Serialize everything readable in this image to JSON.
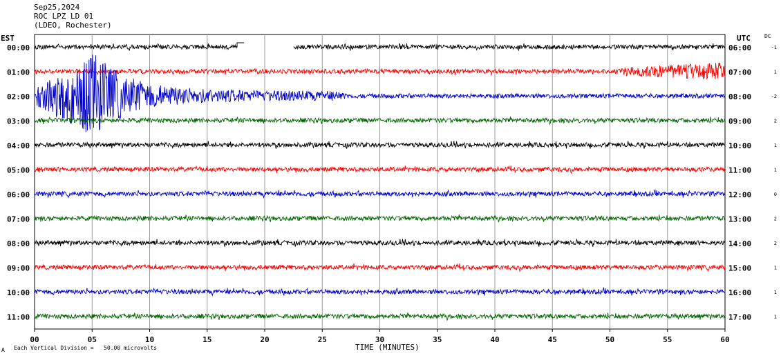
{
  "header": {
    "line1": "Sep25,2024",
    "line2": "ROC LPZ LD 01",
    "line3": "(LDEO, Rochester)"
  },
  "left_axis_label": "EST",
  "right_axis_label": "UTC",
  "dc_label": "DC",
  "footer": {
    "scale_mark": "A",
    "scale_text": "Each Vertical Division =   50.00 microvolts"
  },
  "chart_data": {
    "type": "line",
    "xlabel": "TIME (MINUTES)",
    "xlim": [
      0,
      60
    ],
    "x_ticks": [
      "00",
      "05",
      "10",
      "15",
      "20",
      "25",
      "30",
      "35",
      "40",
      "45",
      "50",
      "55",
      "60"
    ],
    "grid": true,
    "rows": [
      {
        "est": "00:00",
        "utc": "06:00",
        "dc": "-1",
        "color": "#000000"
      },
      {
        "est": "01:00",
        "utc": "07:00",
        "dc": "1",
        "color": "#ff0000"
      },
      {
        "est": "02:00",
        "utc": "08:00",
        "dc": "-2",
        "color": "#0000cc"
      },
      {
        "est": "03:00",
        "utc": "09:00",
        "dc": "2",
        "color": "#006400"
      },
      {
        "est": "04:00",
        "utc": "10:00",
        "dc": "1",
        "color": "#000000"
      },
      {
        "est": "05:00",
        "utc": "11:00",
        "dc": "1",
        "color": "#ff0000"
      },
      {
        "est": "06:00",
        "utc": "12:00",
        "dc": "0",
        "color": "#0000cc"
      },
      {
        "est": "07:00",
        "utc": "13:00",
        "dc": "2",
        "color": "#006400"
      },
      {
        "est": "08:00",
        "utc": "14:00",
        "dc": "2",
        "color": "#000000"
      },
      {
        "est": "09:00",
        "utc": "15:00",
        "dc": "1",
        "color": "#ff0000"
      },
      {
        "est": "10:00",
        "utc": "16:00",
        "dc": "1",
        "color": "#0000cc"
      },
      {
        "est": "11:00",
        "utc": "17:00",
        "dc": "1",
        "color": "#006400"
      }
    ],
    "events": [
      {
        "row": 0,
        "gap_start_min": 17.6,
        "gap_end_min": 22.5
      },
      {
        "row": 2,
        "earthquake_onset_min": 0.2,
        "peak_min": 5.0,
        "decay_end_min": 27
      },
      {
        "row": 1,
        "noise_burst_min": [
          51,
          60
        ]
      }
    ]
  }
}
